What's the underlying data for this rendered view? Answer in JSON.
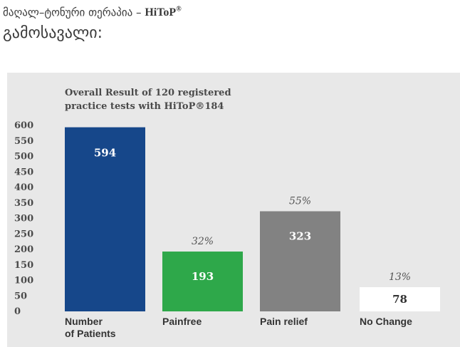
{
  "header": {
    "line1_text": "მაღალ–ტონური თერაპია – ",
    "line1_brand": "HiToP",
    "line1_brand_mark": "®",
    "line2_text": "გამოსავალი:"
  },
  "chart_data": {
    "type": "bar",
    "title": "Overall Result of 120 registered practice tests with HiToP®184",
    "title_line1": "Overall Result of 120 registered",
    "title_line2": "practice tests with HiToP®184",
    "xlabel": "",
    "ylabel": "",
    "ylim": [
      0,
      600
    ],
    "yticks": [
      0,
      50,
      100,
      150,
      200,
      250,
      300,
      350,
      400,
      450,
      500,
      550,
      600
    ],
    "grid": false,
    "categories": [
      "Number of Patients",
      "Painfree",
      "Pain relief",
      "No Change"
    ],
    "category_lines": [
      [
        "Number",
        "of Patients"
      ],
      [
        "Painfree"
      ],
      [
        "Pain relief"
      ],
      [
        "No Change"
      ]
    ],
    "values": [
      594,
      193,
      323,
      78
    ],
    "value_labels": [
      "594",
      "193",
      "323",
      "78"
    ],
    "percent_labels": [
      "",
      "32%",
      "55%",
      "13%"
    ],
    "bar_colors": [
      "#16478a",
      "#2ea84a",
      "#828282",
      "#ffffff"
    ],
    "value_label_colors": [
      "#ffffff",
      "#ffffff",
      "#ffffff",
      "#333333"
    ],
    "background_color": "#e8e8e8"
  }
}
